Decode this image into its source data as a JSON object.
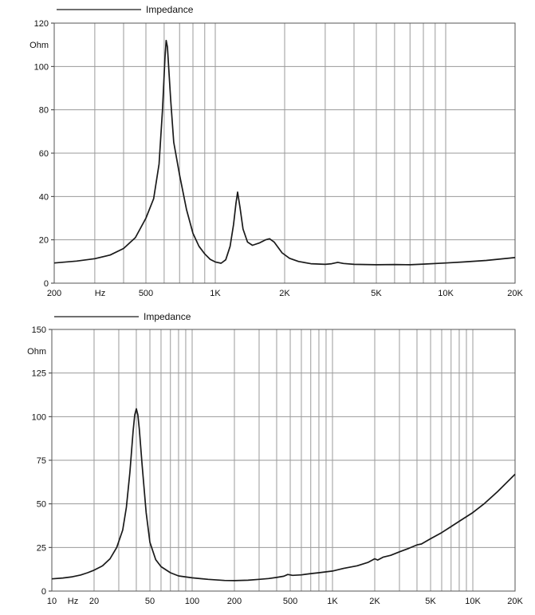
{
  "chart_data": [
    {
      "type": "line",
      "legend": {
        "label": "Impedance",
        "placement": "top-left"
      },
      "ylabel": "Ohm",
      "xlabel": "Hz",
      "x_scale": "log",
      "xlim": [
        200,
        20000
      ],
      "ylim": [
        0,
        120
      ],
      "yticks": [
        0,
        20,
        40,
        60,
        80,
        100,
        120
      ],
      "xticks": [
        {
          "value": 200,
          "label": "200"
        },
        {
          "value": 500,
          "label": "500"
        },
        {
          "value": 1000,
          "label": "1K"
        },
        {
          "value": 2000,
          "label": "2K"
        },
        {
          "value": 5000,
          "label": "5K"
        },
        {
          "value": 10000,
          "label": "10K"
        },
        {
          "value": 20000,
          "label": "20K"
        }
      ],
      "grid": true,
      "series": [
        {
          "name": "Impedance",
          "color": "#1a1a1a",
          "points": [
            [
              200,
              9.3
            ],
            [
              250,
              10.2
            ],
            [
              300,
              11.3
            ],
            [
              350,
              13.0
            ],
            [
              400,
              16.0
            ],
            [
              450,
              21.0
            ],
            [
              500,
              30.0
            ],
            [
              540,
              39.0
            ],
            [
              570,
              55.0
            ],
            [
              590,
              80.0
            ],
            [
              605,
              104.0
            ],
            [
              612,
              112.0
            ],
            [
              620,
              109.0
            ],
            [
              640,
              85.0
            ],
            [
              660,
              65.0
            ],
            [
              700,
              50.0
            ],
            [
              750,
              34.0
            ],
            [
              800,
              23.0
            ],
            [
              850,
              17.0
            ],
            [
              900,
              13.5
            ],
            [
              950,
              11.0
            ],
            [
              1000,
              9.8
            ],
            [
              1060,
              9.2
            ],
            [
              1110,
              10.8
            ],
            [
              1160,
              17.0
            ],
            [
              1200,
              27.0
            ],
            [
              1230,
              37.0
            ],
            [
              1250,
              42.0
            ],
            [
              1280,
              35.0
            ],
            [
              1320,
              25.0
            ],
            [
              1380,
              19.0
            ],
            [
              1450,
              17.5
            ],
            [
              1550,
              18.5
            ],
            [
              1650,
              20.0
            ],
            [
              1720,
              20.5
            ],
            [
              1800,
              19.0
            ],
            [
              1950,
              14.0
            ],
            [
              2100,
              11.5
            ],
            [
              2300,
              10.0
            ],
            [
              2600,
              9.0
            ],
            [
              3000,
              8.7
            ],
            [
              3200,
              9.0
            ],
            [
              3400,
              9.6
            ],
            [
              3600,
              9.1
            ],
            [
              4000,
              8.7
            ],
            [
              5000,
              8.5
            ],
            [
              6000,
              8.6
            ],
            [
              7000,
              8.5
            ],
            [
              8000,
              8.8
            ],
            [
              10000,
              9.3
            ],
            [
              12000,
              9.8
            ],
            [
              15000,
              10.5
            ],
            [
              20000,
              11.8
            ]
          ]
        }
      ]
    },
    {
      "type": "line",
      "legend": {
        "label": "Impedance",
        "placement": "top-left"
      },
      "ylabel": "Ohm",
      "xlabel": "Hz",
      "x_scale": "log",
      "xlim": [
        10,
        20000
      ],
      "ylim": [
        0,
        150
      ],
      "yticks": [
        0,
        25,
        50,
        75,
        100,
        125,
        150
      ],
      "xticks": [
        {
          "value": 10,
          "label": "10"
        },
        {
          "value": 20,
          "label": "20"
        },
        {
          "value": 50,
          "label": "50"
        },
        {
          "value": 100,
          "label": "100"
        },
        {
          "value": 200,
          "label": "200"
        },
        {
          "value": 500,
          "label": "500"
        },
        {
          "value": 1000,
          "label": "1K"
        },
        {
          "value": 2000,
          "label": "2K"
        },
        {
          "value": 5000,
          "label": "5K"
        },
        {
          "value": 10000,
          "label": "10K"
        },
        {
          "value": 20000,
          "label": "20K"
        }
      ],
      "grid": true,
      "series": [
        {
          "name": "Impedance",
          "color": "#1a1a1a",
          "points": [
            [
              10,
              7.0
            ],
            [
              12,
              7.5
            ],
            [
              14,
              8.2
            ],
            [
              16,
              9.2
            ],
            [
              18,
              10.5
            ],
            [
              20,
              12.0
            ],
            [
              23,
              14.5
            ],
            [
              26,
              18.5
            ],
            [
              29,
              25.0
            ],
            [
              32,
              35.0
            ],
            [
              34,
              48.0
            ],
            [
              36,
              68.0
            ],
            [
              38,
              92.0
            ],
            [
              39,
              101.0
            ],
            [
              40,
              104.5
            ],
            [
              41,
              101.0
            ],
            [
              42,
              93.0
            ],
            [
              44,
              72.0
            ],
            [
              47,
              45.0
            ],
            [
              50,
              28.0
            ],
            [
              55,
              18.0
            ],
            [
              60,
              14.0
            ],
            [
              70,
              10.5
            ],
            [
              80,
              8.7
            ],
            [
              100,
              7.6
            ],
            [
              130,
              6.7
            ],
            [
              170,
              6.1
            ],
            [
              200,
              6.0
            ],
            [
              250,
              6.2
            ],
            [
              300,
              6.7
            ],
            [
              350,
              7.2
            ],
            [
              400,
              7.8
            ],
            [
              450,
              8.5
            ],
            [
              480,
              9.5
            ],
            [
              520,
              9.0
            ],
            [
              600,
              9.3
            ],
            [
              700,
              10.0
            ],
            [
              800,
              10.5
            ],
            [
              1000,
              11.5
            ],
            [
              1200,
              13.0
            ],
            [
              1500,
              14.5
            ],
            [
              1800,
              16.5
            ],
            [
              2000,
              18.5
            ],
            [
              2100,
              17.8
            ],
            [
              2300,
              19.5
            ],
            [
              2600,
              20.5
            ],
            [
              3000,
              22.5
            ],
            [
              3500,
              24.5
            ],
            [
              4000,
              26.5
            ],
            [
              4300,
              27.0
            ],
            [
              5000,
              30.0
            ],
            [
              6000,
              33.5
            ],
            [
              7000,
              37.0
            ],
            [
              8000,
              40.0
            ],
            [
              10000,
              45.0
            ],
            [
              12000,
              50.0
            ],
            [
              15000,
              57.0
            ],
            [
              20000,
              67.0
            ]
          ]
        }
      ]
    }
  ]
}
